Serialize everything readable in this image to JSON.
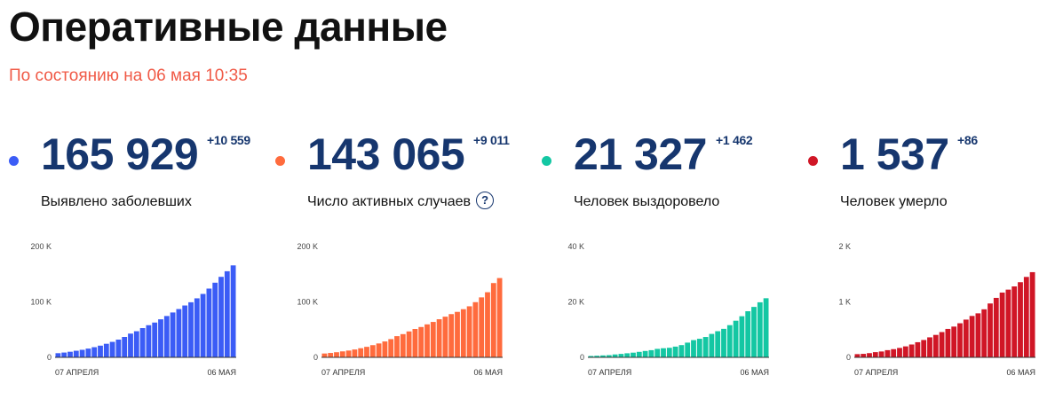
{
  "header": {
    "title": "Оперативные данные",
    "subtitle": "По состоянию на 06 мая 10:35"
  },
  "stats": [
    {
      "value": "165 929",
      "delta": "+10 559",
      "label": "Выявлено заболевших",
      "color": "#3b5cf6"
    },
    {
      "value": "143 065",
      "delta": "+9 011",
      "label": "Число активных случаев",
      "color": "#ff6b3d",
      "help_icon": "question-circle-icon",
      "help_text": "?"
    },
    {
      "value": "21 327",
      "delta": "+1 462",
      "label": "Человек выздоровело",
      "color": "#14c7a3"
    },
    {
      "value": "1 537",
      "delta": "+86",
      "label": "Человек умерло",
      "color": "#d01626"
    }
  ],
  "chart_data": [
    {
      "type": "bar",
      "series_name": "Выявлено заболевших",
      "color": "#3b5cf6",
      "ylim": [
        0,
        200000
      ],
      "y_ticks": [
        0,
        100000,
        200000
      ],
      "y_tick_labels": [
        "0",
        "100 K",
        "200 K"
      ],
      "x_tick_labels": [
        "07 АПРЕЛЯ",
        "06 МАЯ"
      ],
      "categories": [
        "07.04",
        "08.04",
        "09.04",
        "10.04",
        "11.04",
        "12.04",
        "13.04",
        "14.04",
        "15.04",
        "16.04",
        "17.04",
        "18.04",
        "19.04",
        "20.04",
        "21.04",
        "22.04",
        "23.04",
        "24.04",
        "25.04",
        "26.04",
        "27.04",
        "28.04",
        "29.04",
        "30.04",
        "01.05",
        "02.05",
        "03.05",
        "04.05",
        "05.05",
        "06.05"
      ],
      "values": [
        7497,
        8672,
        10131,
        11917,
        13584,
        15770,
        18328,
        21102,
        24490,
        27938,
        32008,
        36793,
        42853,
        47121,
        52763,
        57999,
        62773,
        68622,
        74588,
        80949,
        87147,
        93558,
        99399,
        106498,
        114431,
        124054,
        134687,
        145268,
        155370,
        165929
      ]
    },
    {
      "type": "bar",
      "series_name": "Число активных случаев",
      "color": "#ff6b3d",
      "ylim": [
        0,
        200000
      ],
      "y_ticks": [
        0,
        100000,
        200000
      ],
      "y_tick_labels": [
        "0",
        "100 K",
        "200 K"
      ],
      "x_tick_labels": [
        "07 АПРЕЛЯ",
        "06 МАЯ"
      ],
      "categories": [
        "07.04",
        "08.04",
        "09.04",
        "10.04",
        "11.04",
        "12.04",
        "13.04",
        "14.04",
        "15.04",
        "16.04",
        "17.04",
        "18.04",
        "19.04",
        "20.04",
        "21.04",
        "22.04",
        "23.04",
        "24.04",
        "25.04",
        "26.04",
        "27.04",
        "28.04",
        "29.04",
        "30.04",
        "01.05",
        "02.05",
        "03.05",
        "04.05",
        "05.05",
        "06.05"
      ],
      "values": [
        6922,
        7917,
        9252,
        10776,
        12279,
        14173,
        16470,
        18964,
        22007,
        25048,
        28678,
        32893,
        38224,
        41926,
        46774,
        51198,
        54750,
        59513,
        63888,
        68745,
        73379,
        78000,
        82049,
        86900,
        92100,
        99580,
        108200,
        117500,
        134054,
        143065
      ]
    },
    {
      "type": "bar",
      "series_name": "Человек выздоровело",
      "color": "#14c7a3",
      "ylim": [
        0,
        40000
      ],
      "y_ticks": [
        0,
        20000,
        40000
      ],
      "y_tick_labels": [
        "0",
        "20 K",
        "40 K"
      ],
      "x_tick_labels": [
        "07 АПРЕЛЯ",
        "06 МАЯ"
      ],
      "categories": [
        "07.04",
        "08.04",
        "09.04",
        "10.04",
        "11.04",
        "12.04",
        "13.04",
        "14.04",
        "15.04",
        "16.04",
        "17.04",
        "18.04",
        "19.04",
        "20.04",
        "21.04",
        "22.04",
        "23.04",
        "24.04",
        "25.04",
        "26.04",
        "27.04",
        "28.04",
        "29.04",
        "30.04",
        "01.05",
        "02.05",
        "03.05",
        "04.05",
        "05.05",
        "06.05"
      ],
      "values": [
        494,
        580,
        698,
        794,
        1045,
        1238,
        1470,
        1694,
        1986,
        2304,
        2590,
        3057,
        3291,
        3446,
        3873,
        4420,
        5308,
        6218,
        6701,
        7346,
        8456,
        9434,
        10286,
        11619,
        13220,
        14841,
        16639,
        18203,
        19865,
        21327
      ]
    },
    {
      "type": "bar",
      "series_name": "Человек умерло",
      "color": "#d01626",
      "ylim": [
        0,
        2000
      ],
      "y_ticks": [
        0,
        1000,
        2000
      ],
      "y_tick_labels": [
        "0",
        "1 K",
        "2 K"
      ],
      "x_tick_labels": [
        "07 АПРЕЛЯ",
        "06 МАЯ"
      ],
      "categories": [
        "07.04",
        "08.04",
        "09.04",
        "10.04",
        "11.04",
        "12.04",
        "13.04",
        "14.04",
        "15.04",
        "16.04",
        "17.04",
        "18.04",
        "19.04",
        "20.04",
        "21.04",
        "22.04",
        "23.04",
        "24.04",
        "25.04",
        "26.04",
        "27.04",
        "28.04",
        "29.04",
        "30.04",
        "01.05",
        "02.05",
        "03.05",
        "04.05",
        "05.05",
        "06.05"
      ],
      "values": [
        58,
        63,
        76,
        94,
        106,
        130,
        148,
        170,
        198,
        232,
        273,
        313,
        361,
        405,
        456,
        513,
        555,
        615,
        681,
        747,
        794,
        867,
        972,
        1073,
        1169,
        1222,
        1280,
        1356,
        1451,
        1537
      ]
    }
  ]
}
